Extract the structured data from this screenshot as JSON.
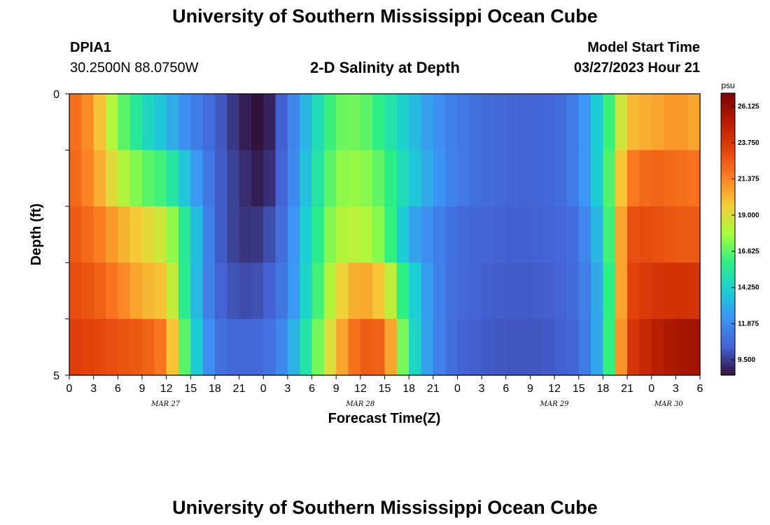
{
  "header": {
    "title": "University of Southern Mississippi Ocean Cube",
    "station": "DPIA1",
    "coords": "30.2500N  88.0750W",
    "plot_title": "2-D Salinity at Depth",
    "start_label": "Model Start Time",
    "start_value": "03/27/2023 Hour 21"
  },
  "footer": {
    "title": "University of Southern Mississippi Ocean Cube"
  },
  "chart_data": {
    "type": "heatmap",
    "title": "2-D Salinity at Depth",
    "xlabel": "Forecast Time(Z)",
    "ylabel": "Depth (ft)",
    "y_ticks": [
      "0",
      "5"
    ],
    "y_range": [
      0,
      5
    ],
    "x_tick_labels": [
      "0",
      "3",
      "6",
      "9",
      "12",
      "15",
      "18",
      "21",
      "0",
      "3",
      "6",
      "9",
      "12",
      "15",
      "18",
      "21",
      "0",
      "3",
      "6",
      "9",
      "12",
      "15",
      "18",
      "21",
      "0",
      "3",
      "6"
    ],
    "date_labels": [
      "MAR 27",
      "MAR 28",
      "MAR 29",
      "MAR 30"
    ],
    "colorbar": {
      "unit": "psu",
      "ticks": [
        "26.125",
        "23.750",
        "21.375",
        "19.000",
        "16.625",
        "14.250",
        "11.875",
        "9.500"
      ],
      "range": [
        8.5,
        27.0
      ]
    },
    "x_hours": [
      0,
      3,
      6,
      9,
      12,
      15,
      18,
      21,
      24,
      27,
      30,
      33,
      36,
      39,
      42,
      45,
      48,
      51,
      54,
      57,
      60,
      63,
      66,
      69,
      72,
      75,
      78
    ],
    "depth_rows": [
      0.5,
      1.5,
      2.5,
      3.5,
      4.5
    ],
    "salinity_psu": [
      [
        22.3,
        20.8,
        17.2,
        14.9,
        13.4,
        11.6,
        10.5,
        9.0,
        8.2,
        11.0,
        14.0,
        16.8,
        17.0,
        15.5,
        13.8,
        12.2,
        11.3,
        10.8,
        10.5,
        10.4,
        10.6,
        11.5,
        14.8,
        20.0,
        20.5,
        21.0,
        20.5
      ],
      [
        22.5,
        21.0,
        18.5,
        16.8,
        16.0,
        13.0,
        10.5,
        9.3,
        8.6,
        11.0,
        14.5,
        17.3,
        17.6,
        16.4,
        14.2,
        12.5,
        11.3,
        10.8,
        10.5,
        10.4,
        10.6,
        11.5,
        14.8,
        21.5,
        22.3,
        22.0,
        21.8
      ],
      [
        22.8,
        21.8,
        20.5,
        19.5,
        18.4,
        14.5,
        10.5,
        9.3,
        9.4,
        11.3,
        15.0,
        18.0,
        18.3,
        17.0,
        13.0,
        11.7,
        10.7,
        10.4,
        10.3,
        10.3,
        10.4,
        11.0,
        14.0,
        22.8,
        23.0,
        22.5,
        22.5
      ],
      [
        23.0,
        22.6,
        21.6,
        20.3,
        19.8,
        14.3,
        10.6,
        9.8,
        10.0,
        11.4,
        15.3,
        19.0,
        20.8,
        19.5,
        14.8,
        11.8,
        10.6,
        10.3,
        10.2,
        10.2,
        10.3,
        10.8,
        13.5,
        23.0,
        23.8,
        24.0,
        23.8
      ],
      [
        23.5,
        23.2,
        22.8,
        22.5,
        21.5,
        15.0,
        11.0,
        10.5,
        10.6,
        12.2,
        16.0,
        20.0,
        22.5,
        22.3,
        15.3,
        11.8,
        10.5,
        10.2,
        10.1,
        10.1,
        10.2,
        10.6,
        13.5,
        23.5,
        24.8,
        25.5,
        25.8
      ]
    ]
  }
}
